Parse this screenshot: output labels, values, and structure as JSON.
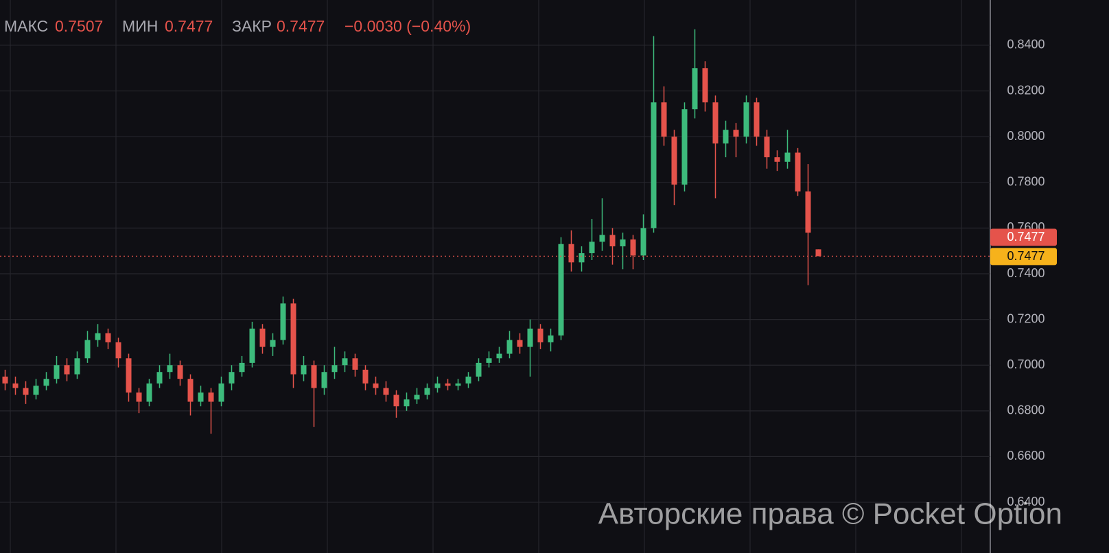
{
  "chart_data": {
    "type": "candlestick",
    "header": {
      "high_label": "МАКС",
      "high": 0.7507,
      "low_label": "МИН",
      "low": 0.7477,
      "close_label": "ЗАКР",
      "close": 0.7477,
      "change": "−0.0030 (−0.40%)"
    },
    "open": [
      0.695,
      0.692,
      0.69,
      0.687,
      0.691,
      0.694,
      0.7,
      0.696,
      0.703,
      0.711,
      0.714,
      0.71,
      0.703,
      0.688,
      0.684,
      0.692,
      0.697,
      0.7,
      0.694,
      0.684,
      0.688,
      0.684,
      0.692,
      0.697,
      0.701,
      0.716,
      0.708,
      0.711,
      0.727,
      0.696,
      0.7,
      0.69,
      0.697,
      0.7,
      0.703,
      0.698,
      0.692,
      0.69,
      0.687,
      0.682,
      0.685,
      0.687,
      0.69,
      0.692,
      0.691,
      0.692,
      0.695,
      0.701,
      0.703,
      0.705,
      0.711,
      0.708,
      0.716,
      0.71,
      0.713,
      0.753,
      0.745,
      0.749,
      0.754,
      0.757,
      0.752,
      0.755,
      0.748,
      0.76,
      0.815,
      0.8,
      0.779,
      0.812,
      0.83,
      0.815,
      0.797,
      0.803,
      0.8,
      0.815,
      0.8,
      0.791,
      0.789,
      0.793,
      0.776,
      0.7507
    ],
    "high": [
      0.698,
      0.695,
      0.693,
      0.694,
      0.697,
      0.704,
      0.703,
      0.706,
      0.715,
      0.718,
      0.716,
      0.712,
      0.705,
      0.69,
      0.694,
      0.7,
      0.705,
      0.702,
      0.696,
      0.691,
      0.69,
      0.695,
      0.7,
      0.704,
      0.719,
      0.718,
      0.714,
      0.73,
      0.729,
      0.704,
      0.702,
      0.7,
      0.708,
      0.706,
      0.705,
      0.7,
      0.695,
      0.693,
      0.689,
      0.688,
      0.69,
      0.692,
      0.695,
      0.694,
      0.694,
      0.697,
      0.703,
      0.706,
      0.708,
      0.715,
      0.714,
      0.72,
      0.718,
      0.716,
      0.756,
      0.759,
      0.752,
      0.764,
      0.773,
      0.76,
      0.758,
      0.757,
      0.766,
      0.844,
      0.822,
      0.803,
      0.815,
      0.847,
      0.833,
      0.818,
      0.807,
      0.806,
      0.818,
      0.817,
      0.803,
      0.794,
      0.803,
      0.795,
      0.788,
      0.7507
    ],
    "low": [
      0.689,
      0.687,
      0.683,
      0.685,
      0.689,
      0.692,
      0.693,
      0.694,
      0.701,
      0.708,
      0.707,
      0.699,
      0.684,
      0.679,
      0.682,
      0.69,
      0.694,
      0.691,
      0.678,
      0.682,
      0.67,
      0.682,
      0.689,
      0.695,
      0.699,
      0.705,
      0.704,
      0.709,
      0.69,
      0.693,
      0.673,
      0.687,
      0.694,
      0.697,
      0.695,
      0.689,
      0.687,
      0.684,
      0.677,
      0.68,
      0.683,
      0.685,
      0.688,
      0.689,
      0.689,
      0.69,
      0.693,
      0.699,
      0.701,
      0.703,
      0.705,
      0.695,
      0.707,
      0.706,
      0.711,
      0.741,
      0.741,
      0.746,
      0.75,
      0.744,
      0.742,
      0.742,
      0.746,
      0.758,
      0.796,
      0.77,
      0.776,
      0.808,
      0.811,
      0.773,
      0.791,
      0.791,
      0.797,
      0.796,
      0.786,
      0.785,
      0.786,
      0.774,
      0.735,
      0.7477
    ],
    "close": [
      0.692,
      0.69,
      0.687,
      0.691,
      0.694,
      0.7,
      0.696,
      0.703,
      0.711,
      0.714,
      0.71,
      0.703,
      0.688,
      0.684,
      0.692,
      0.697,
      0.7,
      0.694,
      0.684,
      0.688,
      0.684,
      0.692,
      0.697,
      0.701,
      0.716,
      0.708,
      0.711,
      0.727,
      0.696,
      0.7,
      0.69,
      0.697,
      0.7,
      0.703,
      0.698,
      0.692,
      0.69,
      0.687,
      0.682,
      0.685,
      0.687,
      0.69,
      0.692,
      0.691,
      0.692,
      0.695,
      0.701,
      0.703,
      0.705,
      0.711,
      0.708,
      0.716,
      0.71,
      0.713,
      0.753,
      0.745,
      0.749,
      0.754,
      0.757,
      0.752,
      0.755,
      0.748,
      0.76,
      0.815,
      0.8,
      0.779,
      0.812,
      0.83,
      0.815,
      0.797,
      0.803,
      0.8,
      0.815,
      0.8,
      0.791,
      0.789,
      0.793,
      0.776,
      0.758,
      0.7477
    ],
    "up_color": "#3dbb7c",
    "down_color": "#e5534b",
    "last_price": 0.7477,
    "close_badge": "0.7477",
    "ylim": [
      0.6178,
      0.8598
    ],
    "yticks": [
      {
        "value": 0.64,
        "label": "0.6400"
      },
      {
        "value": 0.66,
        "label": "0.6600"
      },
      {
        "value": 0.68,
        "label": "0.6800"
      },
      {
        "value": 0.7,
        "label": "0.7000"
      },
      {
        "value": 0.72,
        "label": "0.7200"
      },
      {
        "value": 0.74,
        "label": "0.7400"
      },
      {
        "value": 0.76,
        "label": "0.7600"
      },
      {
        "value": 0.78,
        "label": "0.7800"
      },
      {
        "value": 0.8,
        "label": "0.8000"
      },
      {
        "value": 0.82,
        "label": "0.8200"
      },
      {
        "value": 0.84,
        "label": "0.8400"
      }
    ],
    "grid": true,
    "watermark": "Авторские права © Pocket Option"
  }
}
